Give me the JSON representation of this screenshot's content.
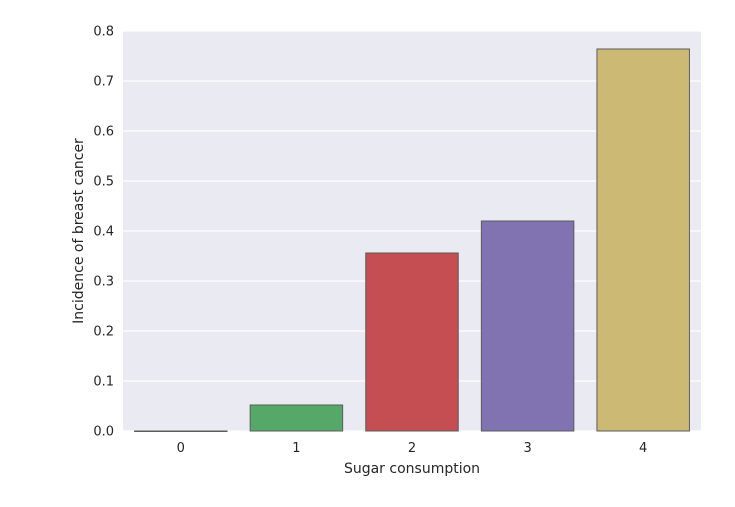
{
  "chart_data": {
    "type": "bar",
    "categories": [
      "0",
      "1",
      "2",
      "3",
      "4"
    ],
    "values": [
      0.0,
      0.052,
      0.356,
      0.42,
      0.764
    ],
    "title": "",
    "xlabel": "Sugar consumption",
    "ylabel": "Incidence of breast cancer",
    "ylim": [
      0,
      0.8
    ],
    "yticks": [
      "0.0",
      "0.1",
      "0.2",
      "0.3",
      "0.4",
      "0.5",
      "0.6",
      "0.7",
      "0.8"
    ],
    "grid": true,
    "colors": [
      "#4c72b0",
      "#55a868",
      "#c44e52",
      "#8172b2",
      "#ccb974"
    ],
    "background": "#eaeaf2",
    "edge_color": "#5b5b5b"
  }
}
